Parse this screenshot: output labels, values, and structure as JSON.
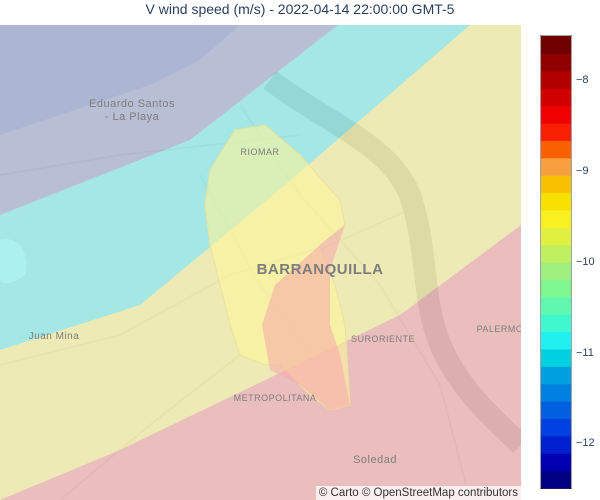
{
  "title": "V wind speed (m/s) - 2022-04-14 22:00:00 GMT-5",
  "map": {
    "attribution": "© Carto © OpenStreetMap contributors",
    "places": [
      {
        "key": "eduardo_santos_l1",
        "label": "Eduardo Santos"
      },
      {
        "key": "eduardo_santos_l2",
        "label": "- La Playa"
      },
      {
        "key": "riomar",
        "label": "RIOMAR"
      },
      {
        "key": "barranquilla",
        "label": "BARRANQUILLA"
      },
      {
        "key": "juan_mina",
        "label": "Juan Mina"
      },
      {
        "key": "suroriente",
        "label": "SURORIENTE"
      },
      {
        "key": "palermo",
        "label": "PALERMO"
      },
      {
        "key": "metropolitana",
        "label": "METROPOLITANA"
      },
      {
        "key": "soledad",
        "label": "Soledad"
      }
    ],
    "wind_zones": [
      {
        "name": "zone-1",
        "v_wind_mps": -11.6,
        "color": "#9aa7d6"
      },
      {
        "name": "zone-2",
        "v_wind_mps": -10.8,
        "color": "#78f0f0"
      },
      {
        "name": "zone-3",
        "v_wind_mps": -9.4,
        "color": "#fbf59a"
      },
      {
        "name": "zone-4",
        "v_wind_mps": -8.0,
        "color": "#f7a6ac"
      }
    ]
  },
  "colorbar": {
    "min": -12.5,
    "max": -7.5,
    "ticks": [
      {
        "value": -8,
        "label": "−8"
      },
      {
        "value": -9,
        "label": "−9"
      },
      {
        "value": -10,
        "label": "−10"
      },
      {
        "value": -11,
        "label": "−11"
      },
      {
        "value": -12,
        "label": "−12"
      }
    ],
    "colors_bottom_to_top": [
      "#000080",
      "#0000b0",
      "#0020d0",
      "#0040e0",
      "#0060e0",
      "#0080e0",
      "#00a0e0",
      "#00d0e0",
      "#20f0f0",
      "#40f8d0",
      "#60f8b0",
      "#80f890",
      "#a0f080",
      "#c0f060",
      "#e0f040",
      "#f8f020",
      "#f8e000",
      "#f8c000",
      "#f8a040",
      "#f86000",
      "#f82000",
      "#f00000",
      "#d00000",
      "#b00000",
      "#900000",
      "#700000"
    ]
  }
}
